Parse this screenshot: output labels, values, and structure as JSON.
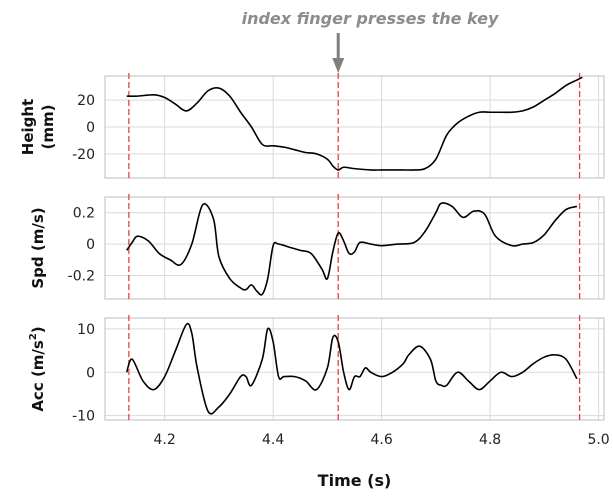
{
  "annotation": {
    "text": "index finger presses the key",
    "x": 4.52,
    "color": "#7f7f7f"
  },
  "xaxis": {
    "label": "Time (s)",
    "lim": [
      4.09,
      5.01
    ],
    "ticks": [
      4.2,
      4.4,
      4.6,
      4.8,
      5.0
    ],
    "tick_labels": [
      "4.2",
      "4.4",
      "4.6",
      "4.8",
      "5.0"
    ]
  },
  "colors": {
    "signal": "#000000",
    "event": "#e8413c",
    "grid": "#d9d9d9",
    "frame": "#bdbdbd"
  },
  "chart_data": [
    {
      "type": "line",
      "ylabel": [
        "Height",
        "(mm)"
      ],
      "ylim": [
        -38,
        38
      ],
      "yticks": [
        -20,
        0,
        20
      ],
      "ytick_labels": [
        "-20",
        "0",
        "20"
      ],
      "events": [
        4.134,
        4.52,
        4.965
      ],
      "series": [
        {
          "x": [
            4.13,
            4.15,
            4.18,
            4.2,
            4.22,
            4.24,
            4.26,
            4.28,
            4.3,
            4.32,
            4.34,
            4.36,
            4.38,
            4.4,
            4.42,
            4.44,
            4.46,
            4.48,
            4.5,
            4.51,
            4.52,
            4.53,
            4.55,
            4.58,
            4.6,
            4.62,
            4.64,
            4.66,
            4.68,
            4.7,
            4.72,
            4.74,
            4.76,
            4.78,
            4.8,
            4.82,
            4.84,
            4.86,
            4.88,
            4.9,
            4.92,
            4.94,
            4.96,
            4.97
          ],
          "y": [
            23,
            23,
            24,
            22,
            17,
            12,
            18,
            27,
            29,
            23,
            11,
            0,
            -13,
            -14,
            -15,
            -17,
            -19,
            -20,
            -24,
            -29,
            -32,
            -30,
            -31,
            -32,
            -32,
            -32,
            -32,
            -32,
            -31,
            -24,
            -6,
            3,
            8,
            11,
            11,
            11,
            11,
            12,
            15,
            20,
            25,
            31,
            35,
            37
          ]
        }
      ]
    },
    {
      "type": "line",
      "ylabel": [
        "Spd (m/s)"
      ],
      "ylim": [
        -0.35,
        0.3
      ],
      "yticks": [
        -0.2,
        0,
        0.2
      ],
      "ytick_labels": [
        "-0.2",
        "0",
        "0.2"
      ],
      "events": [
        4.134,
        4.52,
        4.965
      ],
      "series": [
        {
          "x": [
            4.13,
            4.14,
            4.15,
            4.17,
            4.19,
            4.21,
            4.23,
            4.25,
            4.27,
            4.29,
            4.3,
            4.32,
            4.34,
            4.35,
            4.36,
            4.37,
            4.38,
            4.39,
            4.4,
            4.41,
            4.43,
            4.45,
            4.47,
            4.49,
            4.5,
            4.51,
            4.52,
            4.53,
            4.54,
            4.55,
            4.56,
            4.58,
            4.6,
            4.63,
            4.66,
            4.68,
            4.7,
            4.71,
            4.73,
            4.75,
            4.77,
            4.79,
            4.81,
            4.84,
            4.86,
            4.88,
            4.9,
            4.92,
            4.94,
            4.96
          ],
          "y": [
            -0.04,
            0.01,
            0.05,
            0.02,
            -0.06,
            -0.1,
            -0.13,
            0.0,
            0.25,
            0.16,
            -0.08,
            -0.22,
            -0.28,
            -0.29,
            -0.26,
            -0.3,
            -0.32,
            -0.22,
            -0.01,
            0.0,
            -0.02,
            -0.04,
            -0.06,
            -0.16,
            -0.22,
            -0.05,
            0.07,
            0.02,
            -0.06,
            -0.05,
            0.01,
            0.0,
            -0.01,
            0.0,
            0.01,
            0.08,
            0.2,
            0.26,
            0.24,
            0.17,
            0.21,
            0.19,
            0.05,
            -0.01,
            0.0,
            0.01,
            0.06,
            0.15,
            0.22,
            0.24
          ]
        }
      ]
    },
    {
      "type": "line",
      "ylabel": [
        "Acc (m/s",
        "2",
        ")"
      ],
      "ylim": [
        -11,
        12.5
      ],
      "yticks": [
        -10,
        0,
        10
      ],
      "ytick_labels": [
        "-10",
        "0",
        "10"
      ],
      "events": [
        4.134,
        4.52,
        4.965
      ],
      "series": [
        {
          "x": [
            4.13,
            4.14,
            4.16,
            4.18,
            4.2,
            4.22,
            4.24,
            4.25,
            4.26,
            4.28,
            4.3,
            4.32,
            4.34,
            4.35,
            4.36,
            4.38,
            4.39,
            4.4,
            4.41,
            4.42,
            4.44,
            4.46,
            4.48,
            4.5,
            4.51,
            4.52,
            4.53,
            4.54,
            4.55,
            4.56,
            4.57,
            4.58,
            4.6,
            4.62,
            4.64,
            4.65,
            4.67,
            4.69,
            4.7,
            4.71,
            4.72,
            4.74,
            4.76,
            4.78,
            4.8,
            4.82,
            4.84,
            4.86,
            4.88,
            4.9,
            4.92,
            4.94,
            4.96
          ],
          "y": [
            0,
            3,
            -2,
            -4,
            -1,
            5,
            11,
            9,
            1,
            -9,
            -8,
            -5,
            -1,
            -1,
            -3,
            3,
            10,
            7,
            -1,
            -1,
            -1,
            -2,
            -4,
            1,
            8,
            7,
            0,
            -4,
            -1,
            -1,
            1,
            0,
            -1,
            0,
            2,
            4,
            6,
            3,
            -2,
            -3,
            -3,
            0,
            -2,
            -4,
            -2,
            0,
            -1,
            0,
            2,
            3.5,
            4,
            3,
            -1.5
          ]
        }
      ]
    }
  ]
}
